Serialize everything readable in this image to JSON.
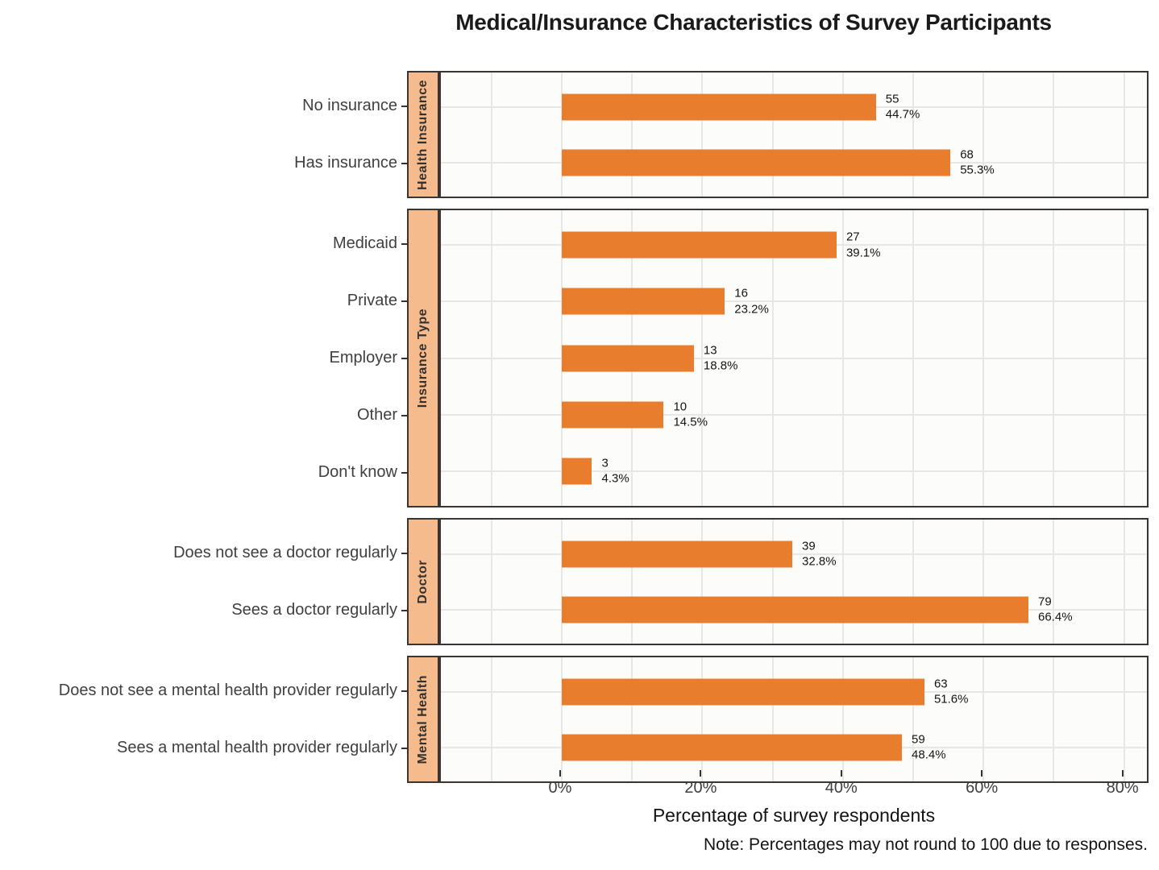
{
  "chart_data": {
    "type": "bar",
    "orientation": "horizontal",
    "title": "Medical/Insurance Characteristics of Survey Participants",
    "xlabel": "Percentage of survey respondents",
    "note": "Note: Percentages may not round to 100 due to responses.",
    "x_unit": "%",
    "xlim": [
      -17.2,
      83.7
    ],
    "x_ticks": [
      {
        "value": 0,
        "label": "0%"
      },
      {
        "value": 20,
        "label": "20%"
      },
      {
        "value": 40,
        "label": "40%"
      },
      {
        "value": 60,
        "label": "60%"
      },
      {
        "value": 80,
        "label": "80%"
      }
    ],
    "gridlines": {
      "show": true,
      "step": 10,
      "min": -10,
      "max": 80
    },
    "legend": "none",
    "facets": [
      {
        "label": "Health Insurance",
        "rows": [
          {
            "category": "No insurance",
            "count": 55,
            "pct": 44.7
          },
          {
            "category": "Has insurance",
            "count": 68,
            "pct": 55.3
          }
        ]
      },
      {
        "label": "Insurance Type",
        "rows": [
          {
            "category": "Medicaid",
            "count": 27,
            "pct": 39.1
          },
          {
            "category": "Private",
            "count": 16,
            "pct": 23.2
          },
          {
            "category": "Employer",
            "count": 13,
            "pct": 18.8
          },
          {
            "category": "Other",
            "count": 10,
            "pct": 14.5
          },
          {
            "category": "Don't know",
            "count": 3,
            "pct": 4.3
          }
        ]
      },
      {
        "label": "Doctor",
        "rows": [
          {
            "category": "Does not see a doctor regularly",
            "count": 39,
            "pct": 32.8
          },
          {
            "category": "Sees a doctor regularly",
            "count": 79,
            "pct": 66.4
          }
        ]
      },
      {
        "label": "Mental Health",
        "rows": [
          {
            "category": "Does not see a mental health provider regularly",
            "count": 63,
            "pct": 51.6
          },
          {
            "category": "Sees a mental health provider regularly",
            "count": 59,
            "pct": 48.4
          }
        ]
      }
    ],
    "colors": {
      "bar": "#E87D2E",
      "strip_fill": "#F6BB8C",
      "strip_border": "#3A3432",
      "panel_border": "#3A3432",
      "panel_bg": "#FCFCFB",
      "gridline": "#E7E7E6",
      "axis_text": "#3F3F3F",
      "text": "#141414"
    }
  }
}
